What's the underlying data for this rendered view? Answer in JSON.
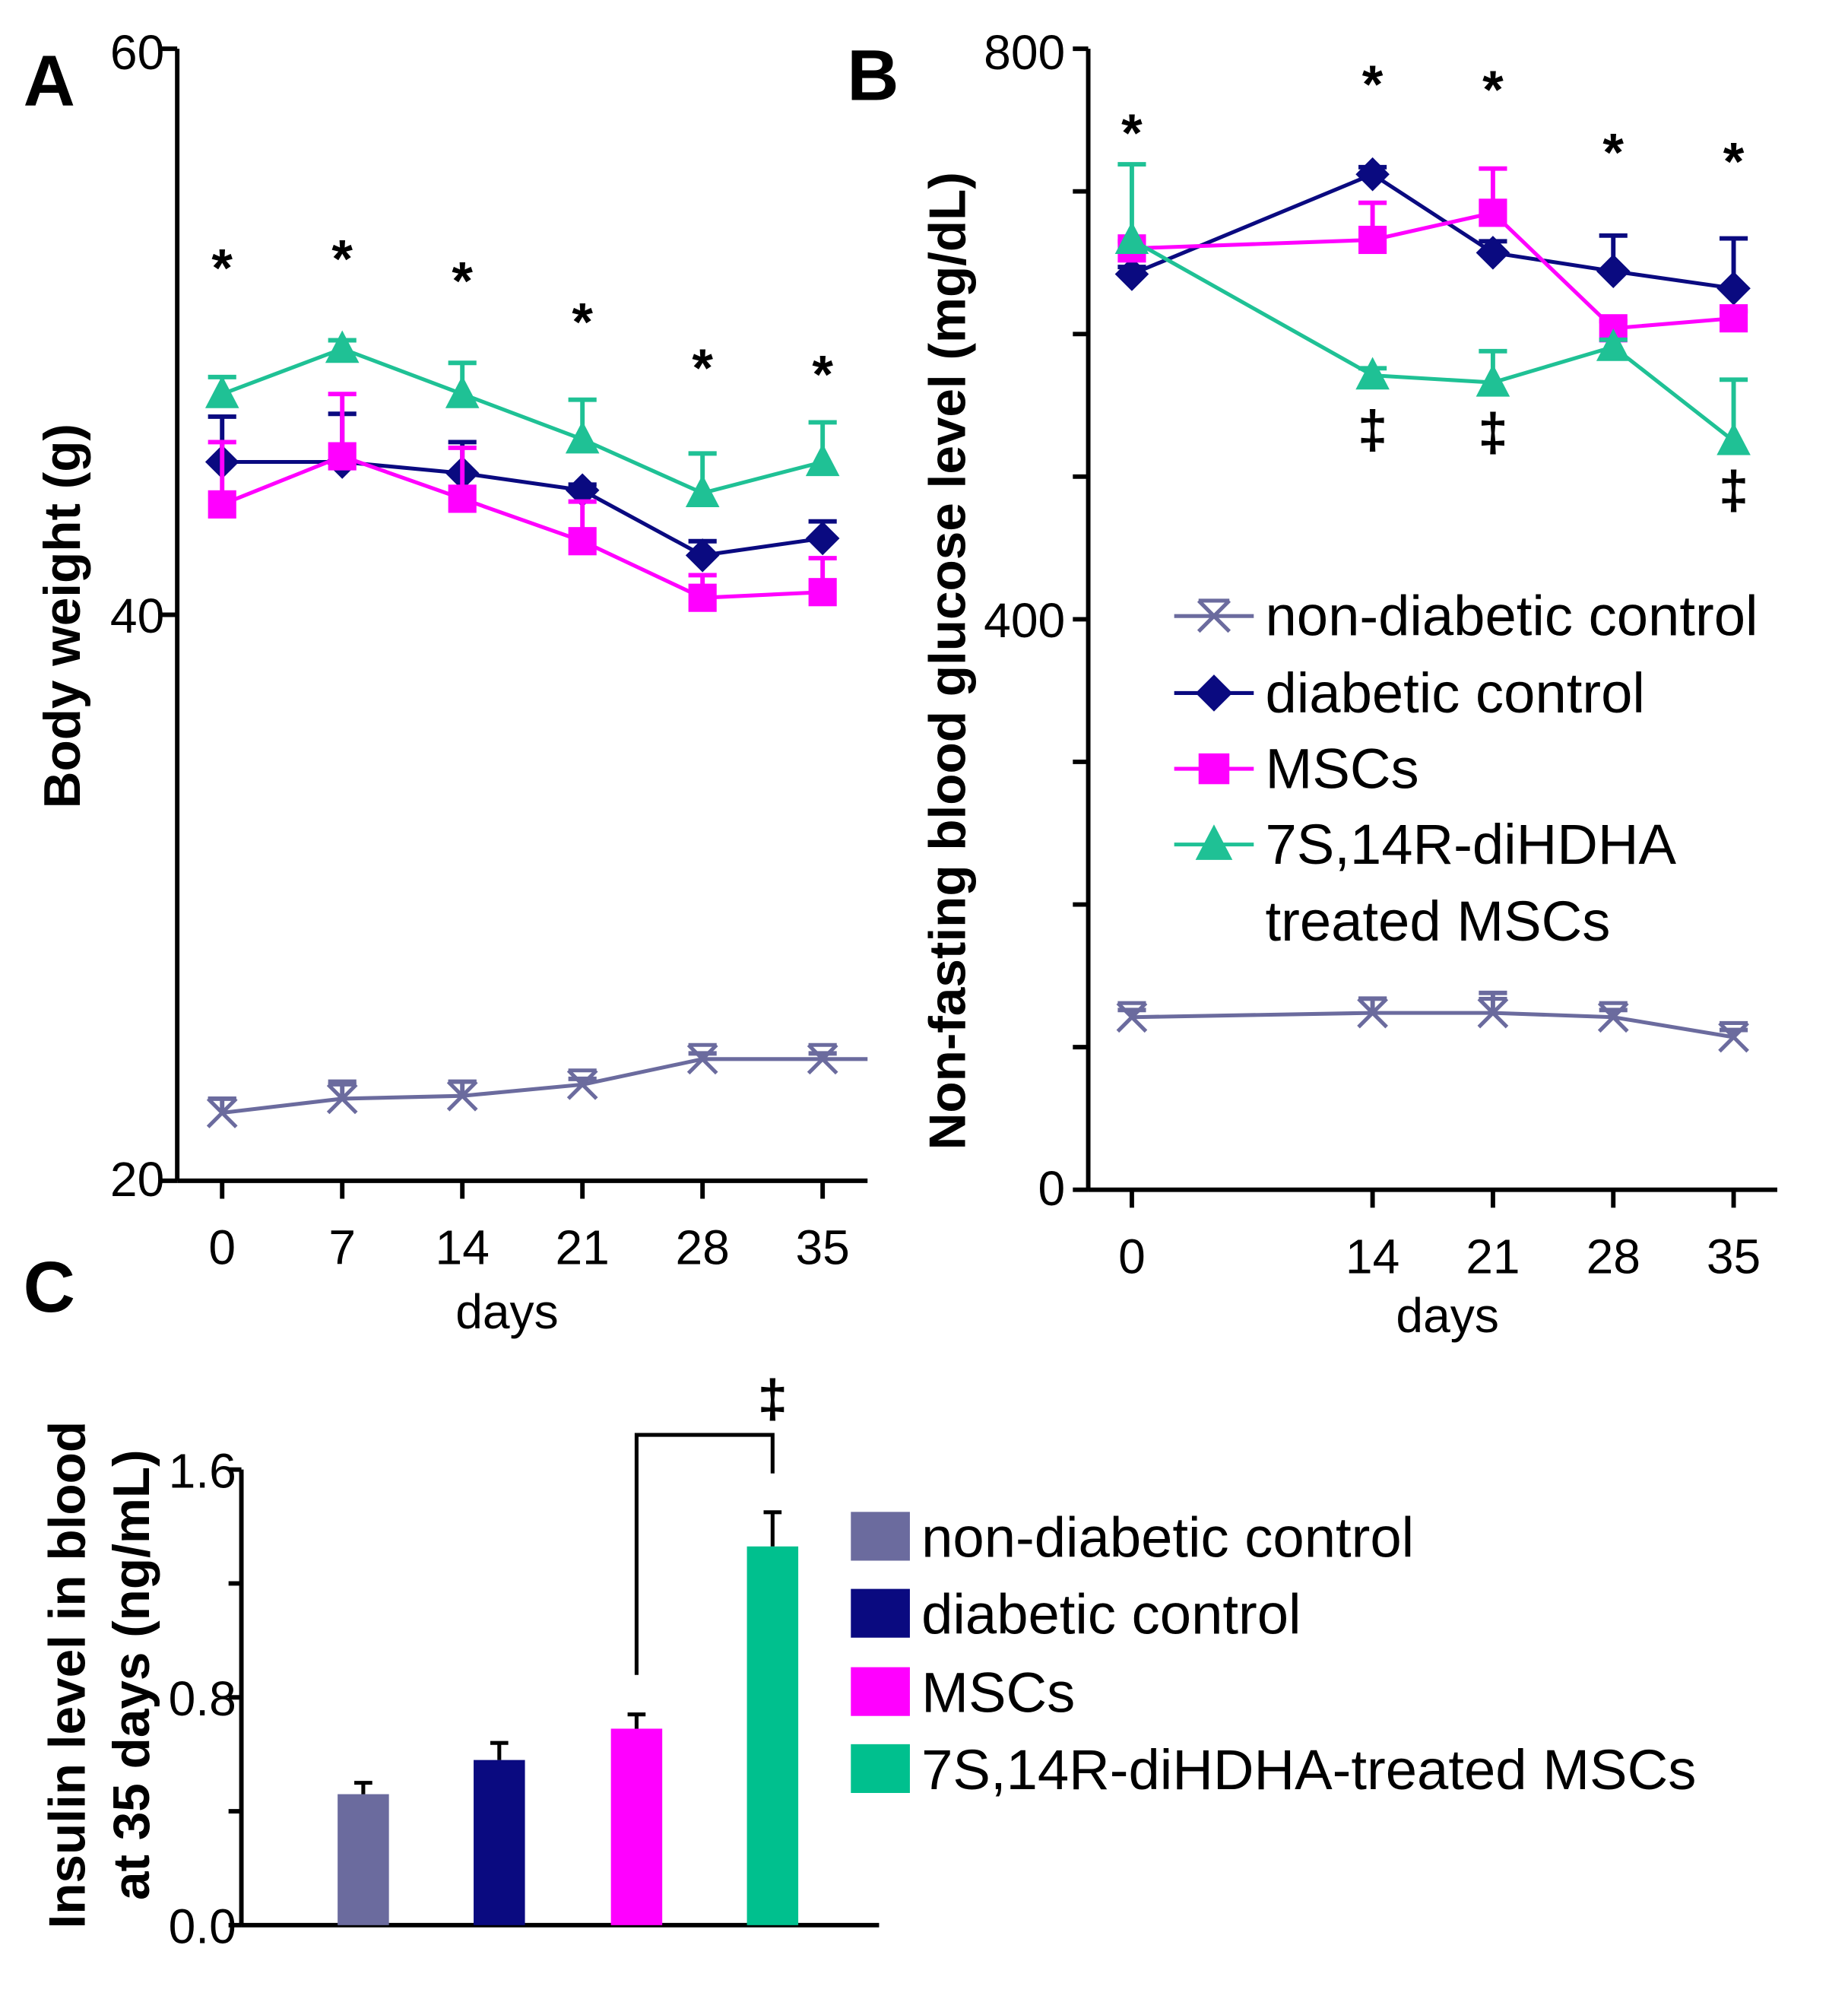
{
  "colors": {
    "non_diabetic": "#6b6b9e",
    "diabetic": "#0a0a80",
    "mscs": "#ff00ff",
    "treated": "#1fc195",
    "treated_bar": "#00c08e"
  },
  "chart_data": [
    {
      "panel": "A",
      "type": "line",
      "ylabel": "Body weight (g)",
      "xlabel": "days",
      "ylim": [
        20,
        60
      ],
      "yticks": [
        20,
        40,
        60
      ],
      "yticks_labeled": [
        "20",
        "40",
        "60"
      ],
      "x": [
        0,
        7,
        14,
        21,
        28,
        35
      ],
      "xtick_labels": [
        "0",
        "7",
        "14",
        "21",
        "28",
        "35"
      ],
      "series": [
        {
          "key": "non_diabetic",
          "marker": "x",
          "values": [
            22.4,
            22.9,
            23.0,
            23.4,
            24.3,
            24.3
          ],
          "err": [
            0.5,
            0.6,
            0.5,
            0.2,
            0.2,
            0.2
          ]
        },
        {
          "key": "diabetic",
          "marker": "diamond",
          "values": [
            45.4,
            45.4,
            45.0,
            44.4,
            42.1,
            42.7
          ],
          "err": [
            1.6,
            1.7,
            1.1,
            0.2,
            0.5,
            0.6
          ]
        },
        {
          "key": "mscs",
          "marker": "square",
          "values": [
            43.9,
            45.6,
            44.1,
            42.6,
            40.6,
            40.8
          ],
          "err": [
            2.2,
            2.2,
            1.8,
            1.4,
            0.8,
            1.2
          ]
        },
        {
          "key": "treated",
          "marker": "triangle",
          "values": [
            47.8,
            49.4,
            47.8,
            46.2,
            44.3,
            45.4
          ],
          "err": [
            0.6,
            0.3,
            1.1,
            1.4,
            1.4,
            1.4
          ]
        }
      ],
      "annotations": [
        {
          "x": 0,
          "text": "*"
        },
        {
          "x": 7,
          "text": "*"
        },
        {
          "x": 14,
          "text": "*"
        },
        {
          "x": 21,
          "text": "*"
        },
        {
          "x": 28,
          "text": "*"
        },
        {
          "x": 35,
          "text": "*"
        }
      ]
    },
    {
      "panel": "B",
      "type": "line",
      "ylabel": "Non-fasting blood glucose level (mg/dL)",
      "xlabel": "days",
      "ylim": [
        0,
        800
      ],
      "yticks": [
        0,
        100,
        200,
        300,
        400,
        500,
        600,
        700,
        800
      ],
      "yticks_labeled": [
        "0",
        "400",
        "800"
      ],
      "x": [
        0,
        14,
        21,
        28,
        35
      ],
      "xtick_labels": [
        "0",
        "14",
        "21",
        "28",
        "35"
      ],
      "series": [
        {
          "key": "non_diabetic",
          "marker": "x",
          "values": [
            121,
            124,
            124,
            121,
            107
          ],
          "err": [
            5,
            10,
            14,
            5,
            5
          ]
        },
        {
          "key": "diabetic",
          "marker": "diamond",
          "values": [
            642,
            712,
            657,
            644,
            632
          ],
          "err": [
            5,
            5,
            8,
            25,
            35
          ]
        },
        {
          "key": "mscs",
          "marker": "square",
          "values": [
            660,
            666,
            685,
            604,
            611
          ],
          "err": [
            5,
            26,
            31,
            5,
            5
          ]
        },
        {
          "key": "treated",
          "marker": "triangle",
          "values": [
            666,
            571,
            566,
            591,
            525
          ],
          "err": [
            53,
            5,
            22,
            5,
            43
          ]
        }
      ],
      "annotations": [
        {
          "x": 0,
          "text": "*"
        },
        {
          "x": 14,
          "text": "*"
        },
        {
          "x": 21,
          "text": "*"
        },
        {
          "x": 28,
          "text": "*"
        },
        {
          "x": 35,
          "text": "*"
        },
        {
          "x": 14,
          "text": "‡"
        },
        {
          "x": 21,
          "text": "‡"
        },
        {
          "x": 35,
          "text": "‡"
        }
      ],
      "legend": [
        "non-diabetic control",
        "diabetic control",
        "MSCs",
        "7S,14R-diHDHA",
        "treated MSCs"
      ],
      "legend_placement": "inside-right"
    },
    {
      "panel": "C",
      "type": "bar",
      "ylabel": [
        "Insulin level in blood",
        "at 35 days (ng/mL)"
      ],
      "ylim": [
        0,
        1.6
      ],
      "yticks": [
        0,
        0.4,
        0.8,
        1.2,
        1.6
      ],
      "yticks_labeled": [
        "0.0",
        "0.8",
        "1.6"
      ],
      "categories": [
        "non-diabetic control",
        "diabetic control",
        "MSCs",
        "7S,14R-diHDHA-treated MSCs"
      ],
      "keys": [
        "non_diabetic",
        "diabetic",
        "mscs",
        "treated_bar"
      ],
      "values": [
        0.46,
        0.58,
        0.69,
        1.33
      ],
      "err": [
        0.04,
        0.06,
        0.05,
        0.12
      ],
      "significance": {
        "from": 2,
        "to": 3,
        "text": "‡"
      },
      "legend_placement": "right"
    }
  ]
}
